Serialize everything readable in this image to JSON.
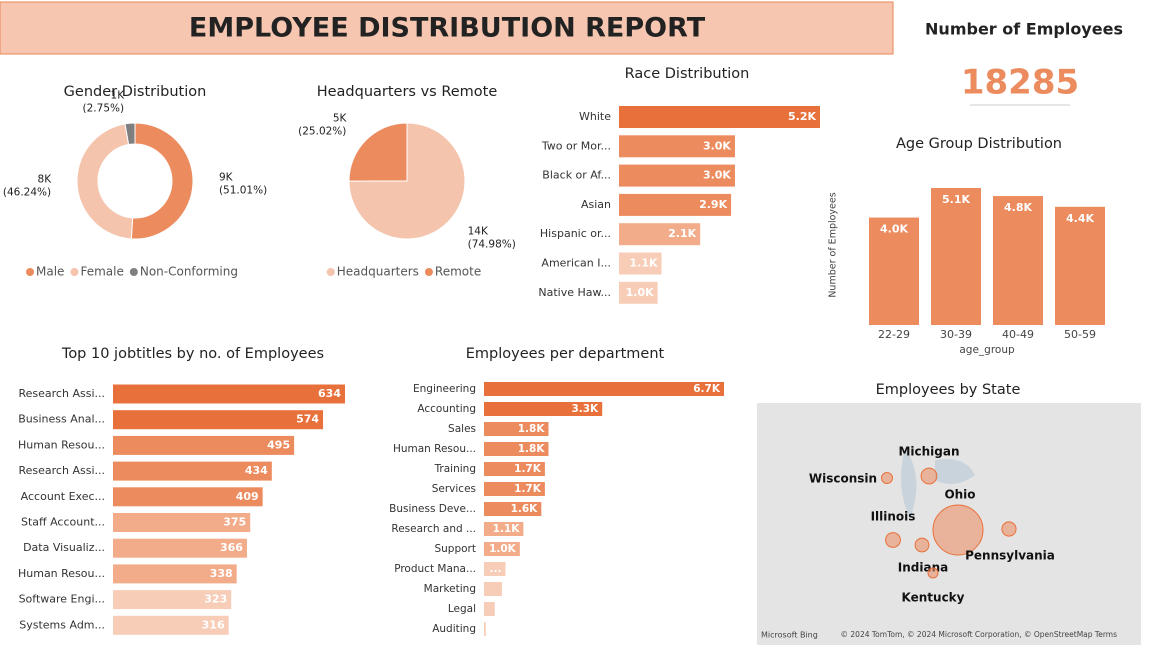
{
  "header": {
    "title": "EMPLOYEE DISTRIBUTION REPORT"
  },
  "kpi": {
    "title": "Number of Employees",
    "value": 18285
  },
  "chart_data": [
    {
      "type": "donut",
      "title": "Gender Distribution",
      "categories": [
        "Male",
        "Female",
        "Non-Conforming"
      ],
      "values": [
        51.01,
        46.24,
        2.75
      ],
      "value_labels": [
        "9K (51.01%)",
        "8K (46.24%)",
        "1K (2.75%)"
      ],
      "colors": [
        "#ec8b5e",
        "#f5c4ad",
        "#7f7f7f"
      ],
      "legend": "bottom"
    },
    {
      "type": "pie",
      "title": "Headquarters vs Remote",
      "categories": [
        "Headquarters",
        "Remote"
      ],
      "values": [
        74.98,
        25.02
      ],
      "value_labels": [
        "14K (74.98%)",
        "5K (25.02%)"
      ],
      "colors": [
        "#f5c4ad",
        "#ec8b5e"
      ],
      "legend": "bottom"
    },
    {
      "type": "hbar",
      "title": "Race Distribution",
      "categories": [
        "White",
        "Two or Mor...",
        "Black or Af...",
        "Asian",
        "Hispanic or...",
        "American I...",
        "Native Haw..."
      ],
      "values": [
        5200,
        3000,
        3000,
        2900,
        2100,
        1100,
        1000
      ],
      "value_labels": [
        "5.2K",
        "3.0K",
        "3.0K",
        "2.9K",
        "2.1K",
        "1.1K",
        "1.0K"
      ],
      "colors": [
        "#e8703a",
        "#ec8b5e",
        "#ec8b5e",
        "#ec8b5e",
        "#f2ac8a",
        "#f7cdb8",
        "#f7cdb8"
      ]
    },
    {
      "type": "vbar",
      "title": "Age Group Distribution",
      "x_label": "age_group",
      "y_label": "Number of Employees",
      "categories": [
        "22-29",
        "30-39",
        "40-49",
        "50-59"
      ],
      "values": [
        4000,
        5100,
        4800,
        4400
      ],
      "value_labels": [
        "4.0K",
        "5.1K",
        "4.8K",
        "4.4K"
      ],
      "color": "#ec8b5e"
    },
    {
      "type": "hbar",
      "title": "Top 10 jobtitles by no. of Employees",
      "categories": [
        "Research Assi...",
        "Business Anal...",
        "Human Resou...",
        "Research Assi...",
        "Account Exec...",
        "Staff Account...",
        "Data Visualiz...",
        "Human Resou...",
        "Software Engi...",
        "Systems Adm..."
      ],
      "values": [
        634,
        574,
        495,
        434,
        409,
        375,
        366,
        338,
        323,
        316
      ],
      "colors": [
        "#e8703a",
        "#e8703a",
        "#ec8b5e",
        "#ec8b5e",
        "#ec8b5e",
        "#f2ac8a",
        "#f2ac8a",
        "#f2ac8a",
        "#f7cdb8",
        "#f7cdb8"
      ]
    },
    {
      "type": "hbar",
      "title": "Employees per department",
      "categories": [
        "Engineering",
        "Accounting",
        "Sales",
        "Human Resou...",
        "Training",
        "Services",
        "Business Deve...",
        "Research and ...",
        "Support",
        "Product Mana...",
        "Marketing",
        "Legal",
        "Auditing"
      ],
      "values": [
        6700,
        3300,
        1800,
        1800,
        1700,
        1700,
        1600,
        1100,
        1000,
        600,
        500,
        300,
        50
      ],
      "value_labels": [
        "6.7K",
        "3.3K",
        "1.8K",
        "1.8K",
        "1.7K",
        "1.7K",
        "1.6K",
        "1.1K",
        "1.0K",
        "...",
        null,
        null,
        null
      ],
      "colors": [
        "#e8703a",
        "#e8703a",
        "#ec8b5e",
        "#ec8b5e",
        "#ec8b5e",
        "#ec8b5e",
        "#ec8b5e",
        "#f2ac8a",
        "#f2ac8a",
        "#f7cdb8",
        "#f7cdb8",
        "#f7cdb8",
        "#f7cdb8"
      ]
    },
    {
      "type": "bubble-map",
      "title": "Employees by State",
      "categories": [
        "Michigan",
        "Wisconsin",
        "Ohio",
        "Illinois",
        "Pennsylvania",
        "Indiana",
        "Kentucky"
      ],
      "values": [
        1250,
        600,
        12500,
        1100,
        1000,
        950,
        500
      ],
      "color": "#ec8b5e",
      "logo": "Microsoft Bing",
      "attribution": "© 2024 TomTom, © 2024 Microsoft Corporation, © OpenStreetMap  Terms"
    }
  ]
}
